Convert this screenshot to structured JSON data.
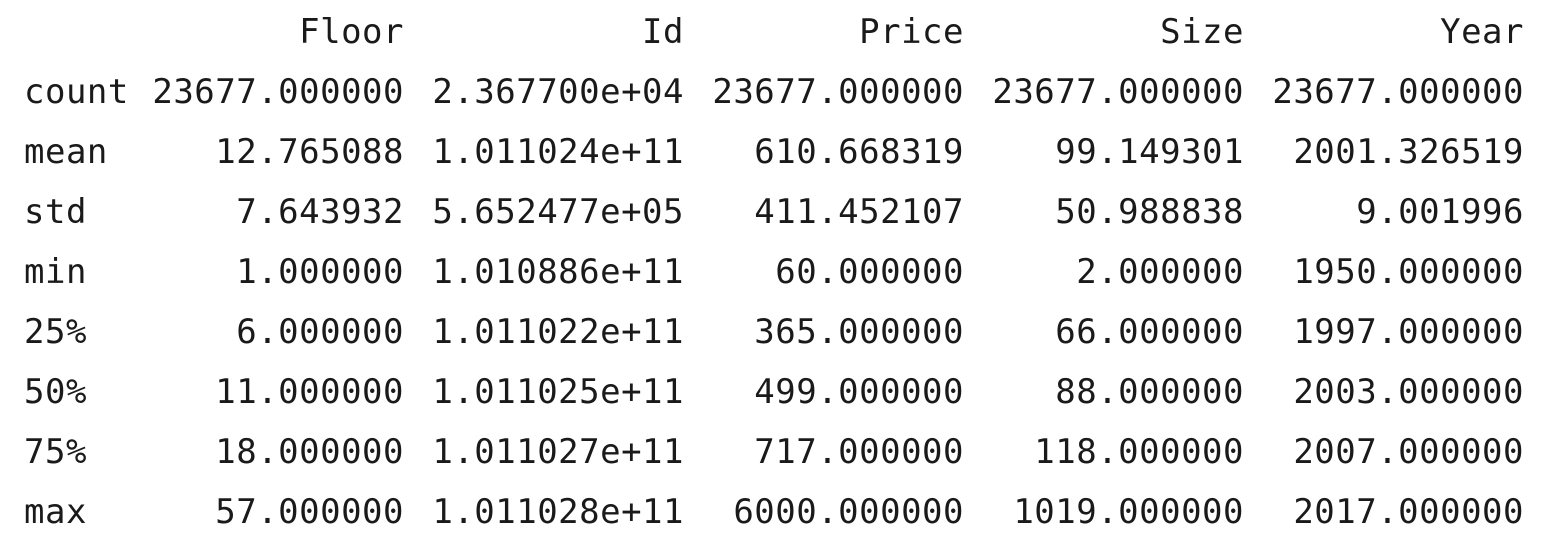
{
  "table": {
    "columns": [
      "Floor",
      "Id",
      "Price",
      "Size",
      "Year"
    ],
    "rows": [
      {
        "label": "count",
        "values": [
          "23677.000000",
          "2.367700e+04",
          "23677.000000",
          "23677.000000",
          "23677.000000"
        ]
      },
      {
        "label": "mean",
        "values": [
          "12.765088",
          "1.011024e+11",
          "610.668319",
          "99.149301",
          "2001.326519"
        ]
      },
      {
        "label": "std",
        "values": [
          "7.643932",
          "5.652477e+05",
          "411.452107",
          "50.988838",
          "9.001996"
        ]
      },
      {
        "label": "min",
        "values": [
          "1.000000",
          "1.010886e+11",
          "60.000000",
          "2.000000",
          "1950.000000"
        ]
      },
      {
        "label": "25%",
        "values": [
          "6.000000",
          "1.011022e+11",
          "365.000000",
          "66.000000",
          "1997.000000"
        ]
      },
      {
        "label": "50%",
        "values": [
          "11.000000",
          "1.011025e+11",
          "499.000000",
          "88.000000",
          "2003.000000"
        ]
      },
      {
        "label": "75%",
        "values": [
          "18.000000",
          "1.011027e+11",
          "717.000000",
          "118.000000",
          "2007.000000"
        ]
      },
      {
        "label": "max",
        "values": [
          "57.000000",
          "1.011028e+11",
          "6000.000000",
          "1019.000000",
          "2017.000000"
        ]
      }
    ]
  }
}
